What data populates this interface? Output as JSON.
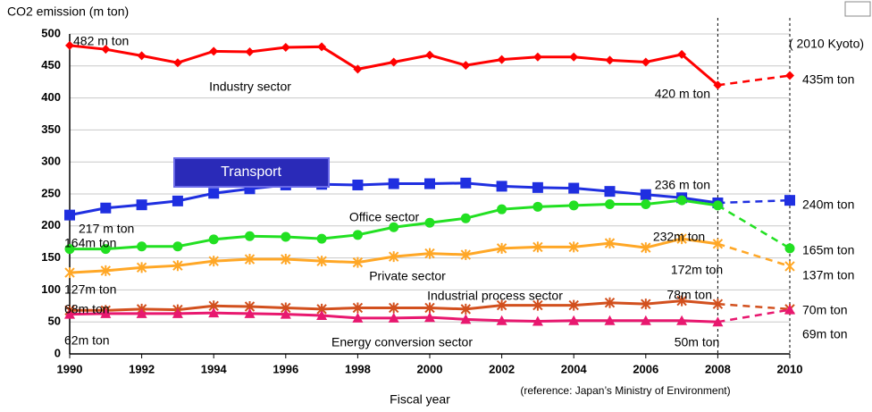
{
  "chart_data": {
    "type": "line",
    "ylabel": "CO2 emission (m ton)",
    "xlabel": "Fiscal year",
    "x": [
      1990,
      1991,
      1992,
      1993,
      1994,
      1995,
      1996,
      1997,
      1998,
      1999,
      2000,
      2001,
      2002,
      2003,
      2004,
      2005,
      2006,
      2007,
      2008,
      2010
    ],
    "projected_from": 2008,
    "xlim": [
      1990,
      2010
    ],
    "xticks": [
      1990,
      1992,
      1994,
      1996,
      1998,
      2000,
      2002,
      2004,
      2006,
      2008,
      2010
    ],
    "ylim": [
      0,
      500
    ],
    "yticks": [
      0,
      50,
      100,
      150,
      200,
      250,
      300,
      350,
      400,
      450,
      500
    ],
    "grid": true,
    "series": [
      {
        "name": "Industry sector",
        "color": "#ff0000",
        "marker": "diamond",
        "values": [
          482,
          476,
          466,
          455,
          473,
          472,
          479,
          480,
          445,
          456,
          467,
          451,
          460,
          464,
          464,
          459,
          456,
          468,
          420,
          435
        ]
      },
      {
        "name": "Transport",
        "color": "#1f2fe0",
        "marker": "square",
        "values": [
          217,
          228,
          233,
          239,
          251,
          258,
          264,
          265,
          264,
          266,
          266,
          267,
          262,
          260,
          259,
          254,
          249,
          244,
          236,
          240
        ]
      },
      {
        "name": "Office sector",
        "color": "#22e022",
        "marker": "circle",
        "values": [
          164,
          164,
          168,
          168,
          179,
          184,
          183,
          180,
          186,
          198,
          205,
          212,
          226,
          230,
          232,
          234,
          234,
          240,
          232,
          165
        ]
      },
      {
        "name": "Private sector",
        "color": "#ffa726",
        "marker": "star",
        "values": [
          127,
          130,
          135,
          138,
          145,
          148,
          148,
          145,
          143,
          152,
          157,
          155,
          165,
          167,
          167,
          173,
          166,
          180,
          172,
          137
        ]
      },
      {
        "name": "Industrial process sector",
        "color": "#d2501e",
        "marker": "star",
        "values": [
          68,
          68,
          70,
          69,
          75,
          74,
          72,
          70,
          72,
          72,
          72,
          70,
          76,
          76,
          76,
          80,
          78,
          83,
          78,
          70
        ]
      },
      {
        "name": "Energy conversion sector",
        "color": "#e8186f",
        "marker": "triangle",
        "values": [
          62,
          63,
          63,
          63,
          64,
          63,
          62,
          60,
          56,
          56,
          57,
          54,
          52,
          51,
          52,
          52,
          52,
          52,
          50,
          69
        ]
      }
    ],
    "annotations": [
      "482 m ton",
      "420 m ton",
      "( 2010 Kyoto)",
      "435m ton",
      "236 m ton",
      "240m ton",
      "217 m ton",
      "164m ton",
      "232m ton",
      "165m ton",
      "172m ton",
      "137m ton",
      "127m ton",
      "78m ton",
      "68m ton",
      "70m ton",
      "62m ton",
      "69m ton",
      "50m ton",
      "(reference: Japan’s Ministry of Environment)"
    ]
  }
}
